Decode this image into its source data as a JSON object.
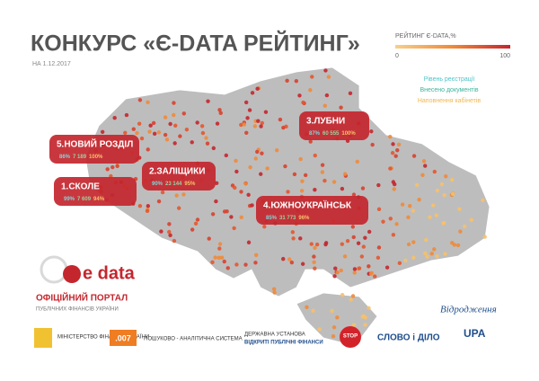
{
  "header": {
    "title": "КОНКУРС «Є-DATA РЕЙТИНГ»",
    "date": "НА 1.12.2017"
  },
  "legend": {
    "title": "РЕЙТИНГ Є-DATA,%",
    "scale_min": "0",
    "scale_max": "100",
    "items": [
      "Рівень реєстрації",
      "Внесено документів",
      "Наповнення кабінетів"
    ]
  },
  "callouts": [
    {
      "label": "5.НОВИЙ РОЗДІЛ",
      "registration": "86%",
      "documents": "7 189",
      "cabinets": "100%"
    },
    {
      "label": "1.СКОЛЕ",
      "registration": "99%",
      "documents": "7 609",
      "cabinets": "94%"
    },
    {
      "label": "2.ЗАЛІЩИКИ",
      "registration": "90%",
      "documents": "23 144",
      "cabinets": "95%"
    },
    {
      "label": "3.ЛУБНИ",
      "registration": "87%",
      "documents": "60 555",
      "cabinets": "100%"
    },
    {
      "label": "4.ЮЖНОУКРАЇНСЬК",
      "registration": "85%",
      "documents": "31 773",
      "cabinets": "96%"
    }
  ],
  "footer": {
    "edata_logo": "e data",
    "portal_title": "ОФІЦІЙНИЙ ПОРТАЛ",
    "portal_subtitle": "ПУБЛІЧНИХ ФІНАНСІВ УКРАЇНИ",
    "ministry": "МІНІСТЕРСТВО ФІНАНСІВ УКРАЇНИ",
    "system_logo": ".007",
    "system_name": "ПОШУКОВО - АНАЛІТИЧНА СИСТЕМА",
    "institution": "ДЕРЖАВНА УСТАНОВА",
    "institution_name": "ВІДКРИТІ ПУБЛІЧНІ ФІНАНСИ",
    "stop": "STOP",
    "slovo": "СЛОВО і ДІЛО",
    "vidrodzhennia": "Відродження",
    "upa": "UPA"
  }
}
